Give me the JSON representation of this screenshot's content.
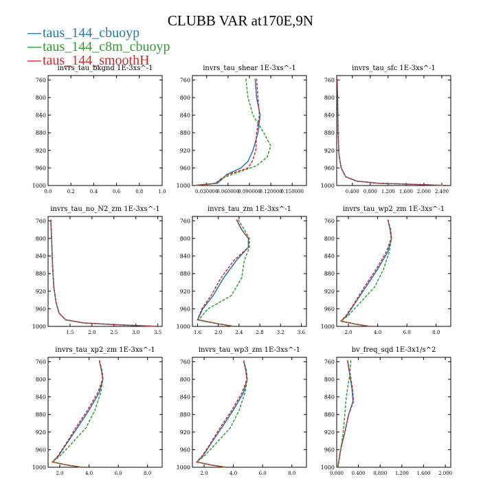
{
  "figure": {
    "title": "CLUBB VAR at170E,9N"
  },
  "legend": [
    {
      "label": "taus_144_cbuoyp",
      "color": "#1f77b4",
      "dash": "—"
    },
    {
      "label": "taus_144_c8m_cbuoyp",
      "color": "#2ca02c",
      "dash": "—"
    },
    {
      "label": "taus_144_smoothH",
      "color": "#d62728",
      "dash": "—"
    }
  ],
  "chart_data": [
    {
      "type": "line",
      "title": "invrs_tau_bkgnd   1E-3xs^-1",
      "xlim": [
        0.0,
        1.0
      ],
      "ylim": [
        1000,
        750
      ],
      "xticks": [
        0.0,
        0.2,
        0.4,
        0.6,
        0.8,
        1.0
      ],
      "xtick_labels": [
        "0.0",
        "0.2",
        "0.4",
        "0.6",
        "0.8",
        "1.0"
      ],
      "yticks": [
        760,
        800,
        840,
        880,
        920,
        960,
        1000
      ],
      "ytick_labels": [
        "760",
        "800",
        "840",
        "880",
        "920",
        "960",
        "1000"
      ],
      "series": []
    },
    {
      "type": "line",
      "title": "invrs_tau_shear   1E-3xs^-1",
      "xlim": [
        0.01,
        0.17
      ],
      "ylim": [
        1000,
        750
      ],
      "xticks": [
        0.03,
        0.06,
        0.09,
        0.12,
        0.15
      ],
      "xtick_labels": [
        "0.030000",
        "0.060000",
        "0.090000",
        "0.120000",
        "0.150000"
      ],
      "yticks": [
        760,
        800,
        840,
        880,
        920,
        960,
        1000
      ],
      "ytick_labels": [
        "760",
        "800",
        "840",
        "880",
        "920",
        "960",
        "1000"
      ],
      "series": [
        {
          "name": "taus_144_cbuoyp",
          "color": "#1f77b4",
          "dashed": false,
          "x": [
            0.098,
            0.1,
            0.105,
            0.102,
            0.095,
            0.088,
            0.078,
            0.058,
            0.052,
            0.045,
            0.012
          ],
          "y": [
            757,
            800,
            840,
            880,
            920,
            945,
            960,
            975,
            985,
            995,
            1000
          ]
        },
        {
          "name": "taus_144_c8m_cbuoyp",
          "color": "#2ca02c",
          "dashed": true,
          "x": [
            0.085,
            0.088,
            0.095,
            0.11,
            0.12,
            0.115,
            0.1,
            0.065,
            0.05,
            0.042,
            0.012
          ],
          "y": [
            757,
            800,
            840,
            880,
            910,
            935,
            955,
            975,
            985,
            995,
            1000
          ]
        },
        {
          "name": "taus_144_smoothH",
          "color": "#d62728",
          "dashed": true,
          "x": [
            0.1,
            0.102,
            0.104,
            0.1,
            0.099,
            0.094,
            0.088,
            0.06,
            0.05,
            0.043,
            0.012
          ],
          "y": [
            757,
            800,
            840,
            880,
            920,
            945,
            960,
            975,
            985,
            995,
            1000
          ]
        }
      ]
    },
    {
      "type": "line",
      "title": "invrs_tau_sfc   1E-3xs^-1",
      "xlim": [
        0.05,
        2.6
      ],
      "ylim": [
        1000,
        750
      ],
      "xticks": [
        0.4,
        0.8,
        1.2,
        1.6,
        2.0,
        2.4
      ],
      "xtick_labels": [
        "0.400",
        "0.800",
        "1.200",
        "1.600",
        "2.000",
        "2.400"
      ],
      "yticks": [
        760,
        800,
        840,
        880,
        920,
        960,
        1000
      ],
      "ytick_labels": [
        "760",
        "800",
        "840",
        "880",
        "920",
        "960",
        "1000"
      ],
      "series": [
        {
          "name": "taus_144_cbuoyp",
          "color": "#1f77b4",
          "dashed": false,
          "x": [
            0.06,
            0.07,
            0.08,
            0.1,
            0.15,
            0.25,
            0.5,
            1.0,
            2.0,
            2.5
          ],
          "y": [
            757,
            800,
            880,
            930,
            960,
            980,
            990,
            995,
            998,
            1000
          ]
        },
        {
          "name": "taus_144_c8m_cbuoyp",
          "color": "#2ca02c",
          "dashed": true,
          "x": [
            0.06,
            0.07,
            0.08,
            0.1,
            0.15,
            0.25,
            0.5,
            1.0,
            2.0,
            2.5
          ],
          "y": [
            757,
            800,
            880,
            930,
            960,
            980,
            990,
            995,
            998,
            1000
          ]
        },
        {
          "name": "taus_144_smoothH",
          "color": "#d62728",
          "dashed": true,
          "x": [
            0.06,
            0.07,
            0.08,
            0.1,
            0.15,
            0.25,
            0.5,
            1.0,
            2.0,
            2.5
          ],
          "y": [
            757,
            800,
            880,
            930,
            960,
            980,
            990,
            995,
            998,
            1000
          ]
        }
      ]
    },
    {
      "type": "line",
      "title": "invrs_tau_no_N2_zm   1E-3xs^-1",
      "xlim": [
        1.0,
        3.6
      ],
      "ylim": [
        1000,
        750
      ],
      "xticks": [
        1.5,
        2.0,
        2.5,
        3.0,
        3.5
      ],
      "xtick_labels": [
        "1.5",
        "2.0",
        "2.5",
        "3.0",
        "3.5"
      ],
      "yticks": [
        760,
        800,
        840,
        880,
        920,
        960,
        1000
      ],
      "ytick_labels": [
        "760",
        "800",
        "840",
        "880",
        "920",
        "960",
        "1000"
      ],
      "series": [
        {
          "name": "taus_144_cbuoyp",
          "color": "#1f77b4",
          "dashed": false,
          "x": [
            1.06,
            1.08,
            1.1,
            1.13,
            1.18,
            1.25,
            1.4,
            1.8,
            2.5,
            3.5
          ],
          "y": [
            757,
            800,
            860,
            910,
            945,
            970,
            985,
            992,
            996,
            1000
          ]
        },
        {
          "name": "taus_144_c8m_cbuoyp",
          "color": "#2ca02c",
          "dashed": true,
          "x": [
            1.06,
            1.08,
            1.1,
            1.13,
            1.18,
            1.25,
            1.4,
            1.8,
            2.5,
            3.5
          ],
          "y": [
            757,
            800,
            860,
            910,
            945,
            970,
            985,
            992,
            996,
            1000
          ]
        },
        {
          "name": "taus_144_smoothH",
          "color": "#d62728",
          "dashed": true,
          "x": [
            1.06,
            1.08,
            1.1,
            1.13,
            1.18,
            1.25,
            1.4,
            1.8,
            2.5,
            3.5
          ],
          "y": [
            757,
            800,
            860,
            910,
            945,
            970,
            985,
            992,
            996,
            1000
          ]
        }
      ]
    },
    {
      "type": "line",
      "title": "invrs_tau_zm   1E-3xs^-1",
      "xlim": [
        1.5,
        3.7
      ],
      "ylim": [
        1000,
        750
      ],
      "xticks": [
        1.6,
        2.0,
        2.4,
        2.8,
        3.2,
        3.6
      ],
      "xtick_labels": [
        "1.6",
        "2.0",
        "2.4",
        "2.8",
        "3.2",
        "3.6"
      ],
      "yticks": [
        760,
        800,
        840,
        880,
        920,
        960,
        1000
      ],
      "ytick_labels": [
        "760",
        "800",
        "840",
        "880",
        "920",
        "960",
        "1000"
      ],
      "series": [
        {
          "name": "taus_144_cbuoyp",
          "color": "#1f77b4",
          "dashed": false,
          "x": [
            2.35,
            2.45,
            2.58,
            2.58,
            2.35,
            2.1,
            1.9,
            1.7,
            1.6,
            2.0,
            2.3
          ],
          "y": [
            757,
            780,
            800,
            820,
            850,
            890,
            930,
            960,
            985,
            994,
            1000
          ]
        },
        {
          "name": "taus_144_c8m_cbuoyp",
          "color": "#2ca02c",
          "dashed": true,
          "x": [
            2.38,
            2.5,
            2.6,
            2.6,
            2.5,
            2.45,
            2.25,
            1.8,
            1.62,
            2.0,
            2.3
          ],
          "y": [
            757,
            780,
            800,
            820,
            850,
            890,
            930,
            960,
            985,
            994,
            1000
          ]
        },
        {
          "name": "taus_144_smoothH",
          "color": "#d62728",
          "dashed": true,
          "x": [
            2.35,
            2.45,
            2.58,
            2.58,
            2.3,
            2.05,
            1.86,
            1.68,
            1.6,
            2.0,
            2.3
          ],
          "y": [
            757,
            780,
            800,
            820,
            850,
            890,
            930,
            960,
            985,
            994,
            1000
          ]
        }
      ]
    },
    {
      "type": "line",
      "title": "invrs_tau_wp2_zm   1E-3xs^-1",
      "xlim": [
        1.2,
        9.0
      ],
      "ylim": [
        1000,
        750
      ],
      "xticks": [
        2.0,
        4.0,
        6.0,
        8.0
      ],
      "xtick_labels": [
        "2.0",
        "4.0",
        "6.0",
        "8.0"
      ],
      "yticks": [
        760,
        800,
        840,
        880,
        920,
        960,
        1000
      ],
      "ytick_labels": [
        "760",
        "800",
        "840",
        "880",
        "920",
        "960",
        "1000"
      ],
      "series": [
        {
          "name": "taus_144_cbuoyp",
          "color": "#1f77b4",
          "dashed": false,
          "x": [
            4.7,
            4.85,
            4.95,
            4.7,
            4.0,
            3.2,
            2.4,
            1.9,
            1.5,
            2.5,
            3.5
          ],
          "y": [
            757,
            780,
            800,
            830,
            870,
            910,
            950,
            975,
            988,
            995,
            1000
          ]
        },
        {
          "name": "taus_144_c8m_cbuoyp",
          "color": "#2ca02c",
          "dashed": true,
          "x": [
            4.7,
            4.9,
            4.95,
            4.8,
            4.4,
            3.8,
            2.7,
            2.0,
            1.5,
            2.5,
            3.5
          ],
          "y": [
            757,
            780,
            800,
            830,
            870,
            910,
            950,
            975,
            988,
            995,
            1000
          ]
        },
        {
          "name": "taus_144_smoothH",
          "color": "#d62728",
          "dashed": true,
          "x": [
            4.7,
            4.85,
            4.92,
            4.6,
            3.9,
            3.1,
            2.35,
            1.85,
            1.5,
            2.5,
            3.5
          ],
          "y": [
            757,
            780,
            800,
            830,
            870,
            910,
            950,
            975,
            988,
            995,
            1000
          ]
        }
      ]
    },
    {
      "type": "line",
      "title": "invrs_tau_xp2_zm   1E-3xs^-1",
      "xlim": [
        1.2,
        9.0
      ],
      "ylim": [
        1000,
        750
      ],
      "xticks": [
        2.0,
        4.0,
        6.0,
        8.0
      ],
      "xtick_labels": [
        "2.0",
        "4.0",
        "6.0",
        "8.0"
      ],
      "yticks": [
        760,
        800,
        840,
        880,
        920,
        960,
        1000
      ],
      "ytick_labels": [
        "760",
        "800",
        "840",
        "880",
        "920",
        "960",
        "1000"
      ],
      "series": [
        {
          "name": "taus_144_cbuoyp",
          "color": "#1f77b4",
          "dashed": false,
          "x": [
            4.7,
            4.85,
            4.95,
            4.7,
            4.0,
            3.2,
            2.4,
            1.9,
            1.5,
            2.5,
            3.5
          ],
          "y": [
            757,
            780,
            800,
            830,
            870,
            910,
            950,
            975,
            988,
            995,
            1000
          ]
        },
        {
          "name": "taus_144_c8m_cbuoyp",
          "color": "#2ca02c",
          "dashed": true,
          "x": [
            4.7,
            4.9,
            4.95,
            4.8,
            4.4,
            3.8,
            2.7,
            2.0,
            1.5,
            2.5,
            3.5
          ],
          "y": [
            757,
            780,
            800,
            830,
            870,
            910,
            950,
            975,
            988,
            995,
            1000
          ]
        },
        {
          "name": "taus_144_smoothH",
          "color": "#d62728",
          "dashed": true,
          "x": [
            4.7,
            4.85,
            4.92,
            4.6,
            3.9,
            3.1,
            2.35,
            1.85,
            1.5,
            2.5,
            3.5
          ],
          "y": [
            757,
            780,
            800,
            830,
            870,
            910,
            950,
            975,
            988,
            995,
            1000
          ]
        }
      ]
    },
    {
      "type": "line",
      "title": "invrs_tau_wp3_zm   1E-3xs^-1",
      "xlim": [
        1.2,
        9.0
      ],
      "ylim": [
        1000,
        750
      ],
      "xticks": [
        2.0,
        4.0,
        6.0,
        8.0
      ],
      "xtick_labels": [
        "2.0",
        "4.0",
        "6.0",
        "8.0"
      ],
      "yticks": [
        760,
        800,
        840,
        880,
        920,
        960,
        1000
      ],
      "ytick_labels": [
        "760",
        "800",
        "840",
        "880",
        "920",
        "960",
        "1000"
      ],
      "series": [
        {
          "name": "taus_144_cbuoyp",
          "color": "#1f77b4",
          "dashed": false,
          "x": [
            4.7,
            4.85,
            4.95,
            4.7,
            4.0,
            3.2,
            2.4,
            1.9,
            1.5,
            2.5,
            3.5
          ],
          "y": [
            757,
            780,
            800,
            830,
            870,
            910,
            950,
            975,
            988,
            995,
            1000
          ]
        },
        {
          "name": "taus_144_c8m_cbuoyp",
          "color": "#2ca02c",
          "dashed": true,
          "x": [
            4.7,
            4.9,
            4.95,
            4.8,
            4.4,
            3.8,
            2.7,
            2.0,
            1.5,
            2.5,
            3.5
          ],
          "y": [
            757,
            780,
            800,
            830,
            870,
            910,
            950,
            975,
            988,
            995,
            1000
          ]
        },
        {
          "name": "taus_144_smoothH",
          "color": "#d62728",
          "dashed": true,
          "x": [
            4.7,
            4.85,
            4.92,
            4.6,
            3.9,
            3.1,
            2.35,
            1.85,
            1.5,
            2.5,
            3.5
          ],
          "y": [
            757,
            780,
            800,
            830,
            870,
            910,
            950,
            975,
            988,
            995,
            1000
          ]
        }
      ]
    },
    {
      "type": "line",
      "title": "bv_freq_sqd   1E-3x1/s^2",
      "xlim": [
        0.0,
        2.1
      ],
      "ylim": [
        1000,
        750
      ],
      "xticks": [
        0.0,
        0.4,
        0.8,
        1.2,
        1.6,
        2.0
      ],
      "xtick_labels": [
        "0.000",
        "0.400",
        "0.800",
        "1.200",
        "1.600",
        "2.000"
      ],
      "yticks": [
        760,
        800,
        840,
        880,
        920,
        960,
        1000
      ],
      "ytick_labels": [
        "760",
        "800",
        "840",
        "880",
        "920",
        "960",
        "1000"
      ],
      "series": [
        {
          "name": "taus_144_cbuoyp",
          "color": "#1f77b4",
          "dashed": false,
          "x": [
            0.2,
            0.24,
            0.28,
            0.3,
            0.22,
            0.15,
            0.08,
            0.04,
            0.02
          ],
          "y": [
            757,
            790,
            820,
            850,
            880,
            920,
            955,
            985,
            1000
          ]
        },
        {
          "name": "taus_144_c8m_cbuoyp",
          "color": "#2ca02c",
          "dashed": true,
          "x": [
            0.26,
            0.24,
            0.2,
            0.17,
            0.15,
            0.12,
            0.08,
            0.04,
            0.02
          ],
          "y": [
            757,
            790,
            820,
            850,
            880,
            920,
            955,
            985,
            1000
          ]
        },
        {
          "name": "taus_144_smoothH",
          "color": "#d62728",
          "dashed": true,
          "x": [
            0.2,
            0.25,
            0.29,
            0.31,
            0.22,
            0.15,
            0.08,
            0.04,
            0.02
          ],
          "y": [
            757,
            790,
            820,
            850,
            880,
            920,
            955,
            985,
            1000
          ]
        }
      ]
    }
  ]
}
